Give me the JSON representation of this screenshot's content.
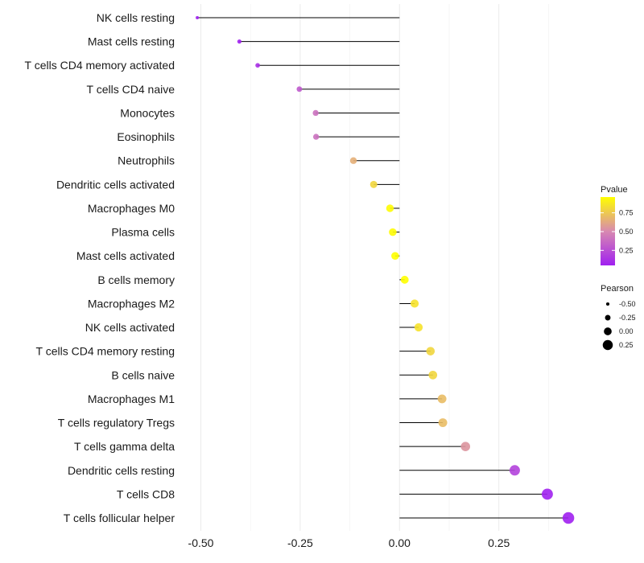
{
  "chart_data": {
    "type": "lollipop",
    "title": "",
    "xlabel": "",
    "ylabel": "",
    "xlim": [
      -0.53,
      0.44
    ],
    "xticks": [
      -0.5,
      -0.25,
      0.0,
      0.25
    ],
    "xtick_labels": [
      "-0.50",
      "-0.25",
      "0.00",
      "0.25"
    ],
    "grid": true,
    "categories": [
      "NK cells resting",
      "Mast cells resting",
      "T cells CD4 memory activated",
      "T cells CD4 naive",
      "Monocytes",
      "Eosinophils",
      "Neutrophils",
      "Dendritic cells activated",
      "Macrophages M0",
      "Plasma cells",
      "Mast cells activated",
      "B cells memory",
      "Macrophages M2",
      "NK cells activated",
      "T cells CD4 memory resting",
      "B cells naive",
      "Macrophages M1",
      "T cells regulatory  Tregs ",
      "T cells gamma delta",
      "Dendritic cells resting",
      "T cells CD8",
      "T cells follicular helper"
    ],
    "pearson": [
      -0.509,
      -0.403,
      -0.357,
      -0.252,
      -0.211,
      -0.21,
      -0.116,
      -0.065,
      -0.024,
      -0.017,
      -0.011,
      0.013,
      0.038,
      0.048,
      0.078,
      0.084,
      0.107,
      0.109,
      0.166,
      0.29,
      0.372,
      0.425
    ],
    "pvalue": [
      0.02,
      0.05,
      0.12,
      0.3,
      0.4,
      0.4,
      0.65,
      0.8,
      0.95,
      0.95,
      0.97,
      0.97,
      0.85,
      0.85,
      0.8,
      0.8,
      0.7,
      0.7,
      0.55,
      0.2,
      0.06,
      0.03
    ],
    "color_legend": {
      "title": "Pvalue",
      "ticks": [
        0.25,
        0.5,
        0.75
      ],
      "labels": [
        "0.25",
        "0.50",
        "0.75"
      ],
      "range": [
        0.05,
        0.96
      ],
      "low_color": "#a020f0",
      "mid_color": "#d889b0",
      "high_color": "#ffff00"
    },
    "size_legend": {
      "title": "Pearson",
      "values": [
        -0.5,
        -0.25,
        0.0,
        0.25
      ],
      "labels": [
        "-0.50",
        "-0.25",
        "0.00",
        "0.25"
      ]
    },
    "legend_position": "right"
  }
}
